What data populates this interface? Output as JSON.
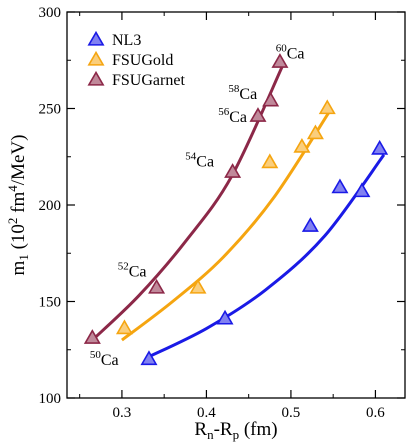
{
  "chart_data": {
    "type": "scatter",
    "xlabel": "R_n-R_p (fm)",
    "ylabel": "m_1 (10^2 fm^4/MeV)",
    "xlim": [
      0.235,
      0.635
    ],
    "ylim": [
      100,
      300
    ],
    "x_ticks": [
      "0.3",
      "0.4",
      "0.5",
      "0.6"
    ],
    "y_ticks": [
      "100",
      "150",
      "200",
      "250",
      "300"
    ],
    "legend_position": "top-left",
    "series": [
      {
        "name": "NL3",
        "color": "#1a1ae6",
        "points": [
          {
            "x": 0.332,
            "y": 120
          },
          {
            "x": 0.422,
            "y": 141
          },
          {
            "x": 0.523,
            "y": 189
          },
          {
            "x": 0.558,
            "y": 209
          },
          {
            "x": 0.584,
            "y": 207
          },
          {
            "x": 0.605,
            "y": 229
          }
        ],
        "fit": [
          [
            0.33,
            121
          ],
          [
            0.4,
            136
          ],
          [
            0.47,
            156
          ],
          [
            0.54,
            184
          ],
          [
            0.61,
            226
          ]
        ]
      },
      {
        "name": "FSUGold",
        "color": "#f5a510",
        "points": [
          {
            "x": 0.303,
            "y": 136
          },
          {
            "x": 0.39,
            "y": 157
          },
          {
            "x": 0.475,
            "y": 222
          },
          {
            "x": 0.513,
            "y": 230
          },
          {
            "x": 0.529,
            "y": 237
          },
          {
            "x": 0.543,
            "y": 250
          }
        ],
        "fit": [
          [
            0.3,
            130
          ],
          [
            0.36,
            150
          ],
          [
            0.42,
            173
          ],
          [
            0.48,
            204
          ],
          [
            0.545,
            248
          ]
        ]
      },
      {
        "name": "FSUGarnet",
        "color": "#8c2848",
        "points": [
          {
            "x": 0.265,
            "y": 131
          },
          {
            "x": 0.341,
            "y": 157
          },
          {
            "x": 0.431,
            "y": 217
          },
          {
            "x": 0.461,
            "y": 246
          },
          {
            "x": 0.476,
            "y": 254
          },
          {
            "x": 0.487,
            "y": 274
          }
        ],
        "fit": [
          [
            0.265,
            130
          ],
          [
            0.32,
            153
          ],
          [
            0.375,
            181
          ],
          [
            0.43,
            215
          ],
          [
            0.49,
            272
          ]
        ]
      }
    ],
    "annotations": [
      {
        "mass": "50",
        "element": "Ca",
        "x": 0.262,
        "y": 117
      },
      {
        "mass": "52",
        "element": "Ca",
        "x": 0.295,
        "y": 163
      },
      {
        "mass": "54",
        "element": "Ca",
        "x": 0.375,
        "y": 220
      },
      {
        "mass": "56",
        "element": "Ca",
        "x": 0.414,
        "y": 243
      },
      {
        "mass": "58",
        "element": "Ca",
        "x": 0.426,
        "y": 255
      },
      {
        "mass": "60",
        "element": "Ca",
        "x": 0.482,
        "y": 276
      }
    ]
  }
}
